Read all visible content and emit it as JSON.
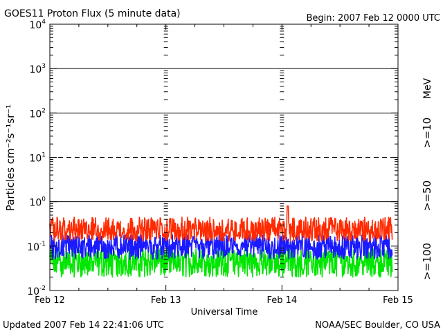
{
  "chart_data": {
    "type": "line",
    "title": "GOES11 Proton Flux (5 minute data)",
    "begin_label": "Begin: 2007 Feb 12 0000 UTC",
    "xlabel": "Universal Time",
    "ylabel": "Particles cm⁻²s⁻¹sr⁻¹",
    "yscale": "log",
    "ylim": [
      0.01,
      10000
    ],
    "y_tick_labels": [
      {
        "value": 0.01,
        "base": "10",
        "exp": "-2"
      },
      {
        "value": 0.1,
        "base": "10",
        "exp": "-1"
      },
      {
        "value": 1,
        "base": "10",
        "exp": "0"
      },
      {
        "value": 10,
        "base": "10",
        "exp": "1"
      },
      {
        "value": 100,
        "base": "10",
        "exp": "2"
      },
      {
        "value": 1000,
        "base": "10",
        "exp": "3"
      },
      {
        "value": 10000,
        "base": "10",
        "exp": "4"
      }
    ],
    "x_range_days": [
      0,
      3
    ],
    "x_tick_labels": [
      {
        "day": 0,
        "label": "Feb 12"
      },
      {
        "day": 1,
        "label": "Feb 13"
      },
      {
        "day": 2,
        "label": "Feb 14"
      },
      {
        "day": 3,
        "label": "Feb 15"
      }
    ],
    "grid_lines": [
      {
        "value": 1,
        "style": "solid"
      },
      {
        "value": 10,
        "style": "dashed"
      },
      {
        "value": 100,
        "style": "solid"
      },
      {
        "value": 1000,
        "style": "solid"
      }
    ],
    "energy_unit": "MeV",
    "legend_placement": "right",
    "series": [
      {
        "name": ">=10",
        "color": "#ff2a00",
        "typical": 0.22,
        "range_low": 0.13,
        "range_high": 0.45,
        "spike": {
          "day": 2.05,
          "value": 0.8
        }
      },
      {
        "name": ">=50",
        "color": "#1a1aff",
        "typical": 0.1,
        "range_low": 0.05,
        "range_high": 0.18
      },
      {
        "name": ">=100",
        "color": "#00e600",
        "typical": 0.045,
        "range_low": 0.02,
        "range_high": 0.09
      }
    ]
  },
  "footer": {
    "updated": "Updated 2007 Feb 14 22:41:06 UTC",
    "credit": "NOAA/SEC Boulder, CO USA"
  }
}
